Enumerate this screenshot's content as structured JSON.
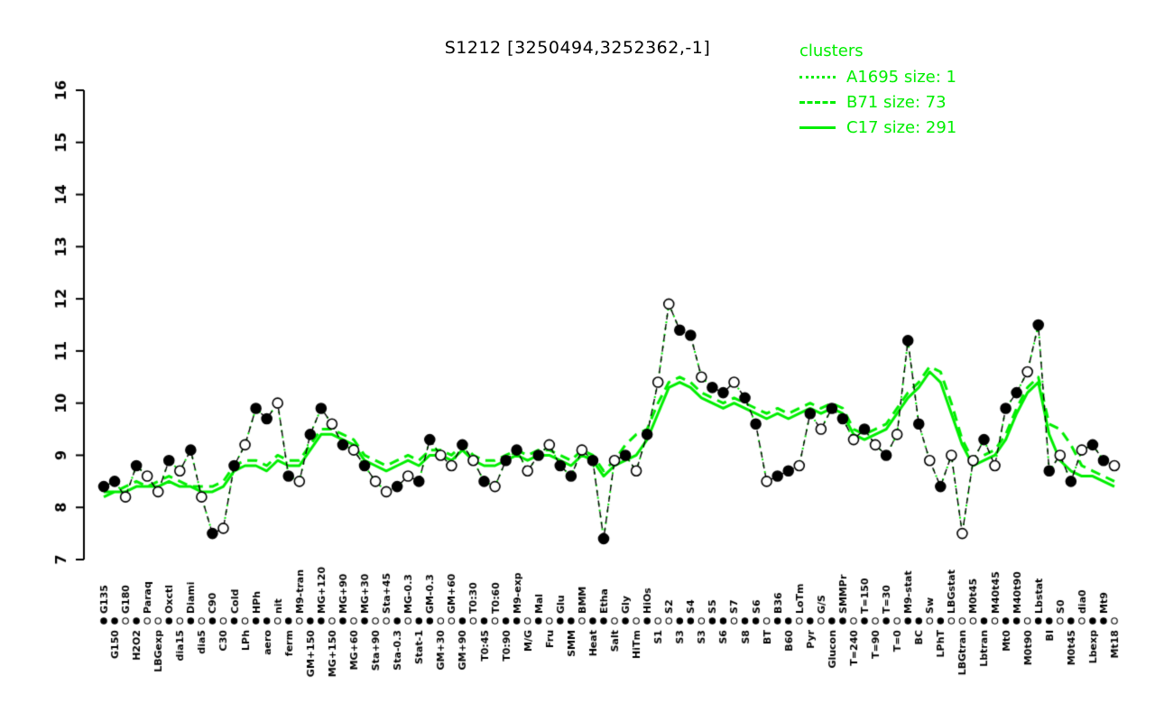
{
  "title": "S1212 [3250494,3252362,-1]",
  "legend": {
    "title": "clusters",
    "items": [
      {
        "label": "A1695 size: 1",
        "style": "dotted"
      },
      {
        "label": "B71 size: 73",
        "style": "dashed"
      },
      {
        "label": "C17 size: 291",
        "style": "solid"
      }
    ]
  },
  "colors": {
    "cluster_green": "#00ee00",
    "profile_black": "#000000",
    "background": "#ffffff"
  },
  "chart_data": {
    "type": "line",
    "title": "S1212 [3250494,3252362,-1]",
    "ylabel": "",
    "xlabel": "",
    "ylim": [
      7,
      16
    ],
    "yticks": [
      7,
      8,
      9,
      10,
      11,
      12,
      13,
      14,
      15,
      16
    ],
    "grid": false,
    "legend_position": "top-right",
    "categories": [
      "G135",
      "G150",
      "G180",
      "H2O2",
      "Paraq",
      "LBGexp",
      "Oxctl",
      "dia15",
      "Diami",
      "dia5",
      "C90",
      "C30",
      "Cold",
      "LPh",
      "HPh",
      "aero",
      "nit",
      "ferm",
      "M9-tran",
      "GM+150",
      "MG+120",
      "MG+150",
      "MG+90",
      "MG+60",
      "MG+30",
      "Sta+90",
      "Sta+45",
      "Sta-0.3",
      "MG-0.3",
      "Stat-1",
      "GM-0.3",
      "GM+30",
      "GM+60",
      "GM+90",
      "T0:30",
      "T0:45",
      "T0:60",
      "T0:90",
      "M9-exp",
      "M/G",
      "Mal",
      "Fru",
      "Glu",
      "SMM",
      "BMM",
      "Heat",
      "Etha",
      "Salt",
      "Gly",
      "HiTm",
      "HiOs",
      "S1",
      "S2",
      "S3",
      "S4",
      "S3",
      "S5",
      "S6",
      "S7",
      "S8",
      "S6",
      "BT",
      "B36",
      "B60",
      "LoTm",
      "Pyr",
      "G/S",
      "Glucon",
      "SMMPr",
      "T=240",
      "T=150",
      "T=90",
      "T=30",
      "T=0",
      "M9-stat",
      "BC",
      "Sw",
      "LPhT",
      "LBGstat",
      "LBGtran",
      "M0t45",
      "Lbtran",
      "M40t45",
      "Mt0",
      "M40t90",
      "M0t90",
      "Lbstat",
      "BI",
      "S0",
      "M0t45",
      "dia0",
      "Lbexp",
      "Mt9",
      "Mt18"
    ],
    "series": [
      {
        "name": "profile",
        "color": "#000000",
        "style": "dashed-markers",
        "values": [
          8.4,
          8.5,
          8.2,
          8.8,
          8.6,
          8.3,
          8.9,
          8.7,
          9.1,
          8.2,
          7.5,
          7.6,
          8.8,
          9.2,
          9.9,
          9.7,
          10.0,
          8.6,
          8.5,
          9.4,
          9.9,
          9.6,
          9.2,
          9.1,
          8.8,
          8.5,
          8.3,
          8.4,
          8.6,
          8.5,
          9.3,
          9.0,
          8.8,
          9.2,
          8.9,
          8.5,
          8.4,
          8.9,
          9.1,
          8.7,
          9.0,
          9.2,
          8.8,
          8.6,
          9.1,
          8.9,
          7.4,
          8.9,
          9.0,
          8.7,
          9.4,
          10.4,
          11.9,
          11.4,
          11.3,
          10.5,
          10.3,
          10.2,
          10.4,
          10.1,
          9.6,
          8.5,
          8.6,
          8.7,
          8.8,
          9.8,
          9.5,
          9.9,
          9.7,
          9.3,
          9.5,
          9.2,
          9.0,
          9.4,
          11.2,
          9.6,
          8.9,
          8.4,
          9.0,
          7.5,
          8.9,
          9.3,
          8.8,
          9.9,
          10.2,
          10.6,
          11.5,
          8.7,
          9.0,
          8.5,
          9.1,
          9.2,
          8.9,
          8.8
        ],
        "marker_filled": [
          1,
          1,
          0,
          1,
          0,
          0,
          1,
          0,
          1,
          0,
          1,
          0,
          1,
          0,
          1,
          1,
          0,
          1,
          0,
          1,
          1,
          0,
          1,
          0,
          1,
          0,
          0,
          1,
          0,
          1,
          1,
          0,
          0,
          1,
          0,
          1,
          0,
          1,
          1,
          0,
          1,
          0,
          1,
          1,
          0,
          1,
          1,
          0,
          1,
          0,
          1,
          0,
          0,
          1,
          1,
          0,
          1,
          1,
          0,
          1,
          1,
          0,
          1,
          1,
          0,
          1,
          0,
          1,
          1,
          0,
          1,
          0,
          1,
          0,
          1,
          1,
          0,
          1,
          0,
          0,
          0,
          1,
          0,
          1,
          1,
          0,
          1,
          1,
          0,
          1,
          0,
          1,
          1,
          0
        ]
      },
      {
        "name": "A1695",
        "color": "#00ee00",
        "style": "dotted",
        "values": [
          8.4,
          8.5,
          8.2,
          8.8,
          8.6,
          8.3,
          8.9,
          8.7,
          9.1,
          8.2,
          7.5,
          7.6,
          8.8,
          9.2,
          9.9,
          9.7,
          10.0,
          8.6,
          8.5,
          9.4,
          9.9,
          9.6,
          9.2,
          9.1,
          8.8,
          8.5,
          8.3,
          8.4,
          8.6,
          8.5,
          9.3,
          9.0,
          8.8,
          9.2,
          8.9,
          8.5,
          8.4,
          8.9,
          9.1,
          8.7,
          9.0,
          9.2,
          8.8,
          8.6,
          9.1,
          8.9,
          7.4,
          8.9,
          9.0,
          8.7,
          9.4,
          10.4,
          11.9,
          11.4,
          11.3,
          10.5,
          10.3,
          10.2,
          10.4,
          10.1,
          9.6,
          8.5,
          8.6,
          8.7,
          8.8,
          9.8,
          9.5,
          9.9,
          9.7,
          9.3,
          9.5,
          9.2,
          9.0,
          9.4,
          11.2,
          9.6,
          8.9,
          8.4,
          9.0,
          7.5,
          8.9,
          9.3,
          8.8,
          9.9,
          10.2,
          10.6,
          11.5,
          8.7,
          9.0,
          8.5,
          9.1,
          9.2,
          8.9,
          8.8
        ]
      },
      {
        "name": "B71",
        "color": "#00ee00",
        "style": "dashed",
        "values": [
          8.3,
          8.3,
          8.4,
          8.5,
          8.4,
          8.5,
          8.6,
          8.5,
          8.4,
          8.4,
          8.4,
          8.5,
          8.8,
          8.9,
          8.9,
          8.8,
          9.0,
          8.9,
          8.9,
          9.2,
          9.5,
          9.5,
          9.4,
          9.3,
          9.0,
          8.9,
          8.8,
          8.9,
          9.0,
          8.9,
          9.1,
          9.1,
          9.0,
          9.2,
          9.0,
          8.9,
          8.9,
          9.0,
          9.1,
          9.0,
          9.1,
          9.1,
          9.0,
          8.9,
          9.1,
          9.0,
          8.7,
          8.9,
          9.2,
          9.4,
          9.5,
          10.0,
          10.4,
          10.5,
          10.4,
          10.2,
          10.1,
          10.0,
          10.1,
          10.0,
          9.9,
          9.8,
          9.9,
          9.8,
          9.9,
          10.0,
          9.9,
          10.0,
          9.9,
          9.5,
          9.4,
          9.5,
          9.6,
          9.9,
          10.2,
          10.4,
          10.7,
          10.6,
          10.0,
          9.3,
          8.9,
          9.0,
          9.1,
          9.4,
          9.9,
          10.3,
          10.5,
          9.6,
          9.5,
          9.2,
          8.8,
          8.7,
          8.6,
          8.5
        ]
      },
      {
        "name": "C17",
        "color": "#00ee00",
        "style": "solid",
        "values": [
          8.2,
          8.3,
          8.3,
          8.4,
          8.4,
          8.4,
          8.5,
          8.4,
          8.4,
          8.3,
          8.3,
          8.4,
          8.7,
          8.8,
          8.8,
          8.7,
          8.9,
          8.8,
          8.8,
          9.1,
          9.4,
          9.4,
          9.3,
          9.2,
          8.9,
          8.8,
          8.7,
          8.8,
          8.9,
          8.8,
          9.0,
          9.0,
          8.9,
          9.1,
          8.9,
          8.8,
          8.8,
          8.9,
          9.0,
          8.9,
          9.0,
          9.0,
          8.9,
          8.8,
          9.0,
          8.9,
          8.6,
          8.8,
          8.9,
          9.0,
          9.3,
          9.8,
          10.3,
          10.4,
          10.3,
          10.1,
          10.0,
          9.9,
          10.0,
          9.9,
          9.8,
          9.7,
          9.8,
          9.7,
          9.8,
          9.9,
          9.8,
          9.9,
          9.8,
          9.4,
          9.3,
          9.4,
          9.5,
          9.8,
          10.1,
          10.3,
          10.6,
          10.4,
          9.8,
          9.2,
          8.8,
          8.9,
          9.0,
          9.3,
          9.8,
          10.2,
          10.4,
          9.4,
          8.9,
          8.7,
          8.6,
          8.6,
          8.5,
          8.4
        ]
      }
    ]
  }
}
